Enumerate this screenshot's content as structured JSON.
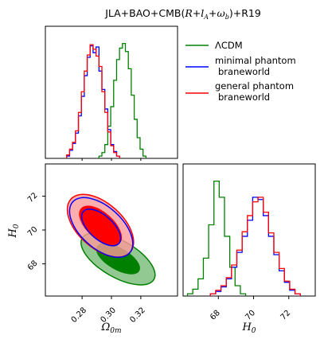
{
  "title": "JLA+BAO+CMB(R+l_A+ω_b)+R19",
  "legend": {
    "placement": "top-right",
    "entries": [
      {
        "label": "ΛCDM",
        "color": "#008000"
      },
      {
        "label": "minimal phantom\nbraneworld",
        "color": "#0000ff"
      },
      {
        "label": "general phantom\nbraneworld",
        "color": "#ff0000"
      }
    ]
  },
  "chart_data": [
    {
      "type": "histogram",
      "panel": "Omega_0m marginal",
      "xlim": [
        0.255,
        0.345
      ],
      "ylim": [
        0,
        1.15
      ],
      "grid": false,
      "series": [
        {
          "name": "ΛCDM",
          "color": "#008000",
          "x": [
            0.2925,
            0.2945,
            0.2965,
            0.2985,
            0.3005,
            0.3025,
            0.3045,
            0.3065,
            0.3085,
            0.3105,
            0.3125,
            0.3145,
            0.3165,
            0.3185,
            0.3205,
            0.3225
          ],
          "values": [
            0.02,
            0.05,
            0.12,
            0.28,
            0.45,
            0.68,
            0.86,
            0.96,
            1.0,
            0.93,
            0.78,
            0.55,
            0.34,
            0.18,
            0.08,
            0.02
          ]
        },
        {
          "name": "minimal phantom braneworld",
          "color": "#0000ff",
          "x": [
            0.2705,
            0.2725,
            0.2745,
            0.2765,
            0.2785,
            0.2805,
            0.2825,
            0.2845,
            0.2865,
            0.2885,
            0.2905,
            0.2925,
            0.2945,
            0.2965,
            0.2985,
            0.3005,
            0.3025,
            0.3045
          ],
          "values": [
            0.02,
            0.07,
            0.13,
            0.22,
            0.37,
            0.54,
            0.72,
            0.88,
            0.98,
            0.92,
            0.97,
            0.76,
            0.6,
            0.43,
            0.25,
            0.12,
            0.06,
            0.02
          ]
        },
        {
          "name": "general phantom braneworld",
          "color": "#ff0000",
          "x": [
            0.2705,
            0.2725,
            0.2745,
            0.2765,
            0.2785,
            0.2805,
            0.2825,
            0.2845,
            0.2865,
            0.2885,
            0.2905,
            0.2925,
            0.2945,
            0.2965,
            0.2985,
            0.3005,
            0.3025,
            0.3045
          ],
          "values": [
            0.03,
            0.08,
            0.14,
            0.24,
            0.4,
            0.58,
            0.76,
            0.9,
            0.99,
            0.95,
            0.89,
            0.8,
            0.58,
            0.4,
            0.23,
            0.11,
            0.05,
            0.02
          ]
        }
      ]
    },
    {
      "type": "contour",
      "panel": "H0 vs Omega_0m",
      "xlabel": "Ω_0m",
      "ylabel": "H_0",
      "xlim": [
        0.255,
        0.345
      ],
      "ylim": [
        66.1,
        73.9
      ],
      "xticks": [
        "0.28",
        "0.30",
        "0.32"
      ],
      "yticks": [
        "68",
        "70",
        "72"
      ],
      "grid": false,
      "series": [
        {
          "name": "ΛCDM",
          "color": "#008000",
          "center": [
            0.3045,
            68.3
          ],
          "levels": [
            "68%",
            "95%"
          ]
        },
        {
          "name": "minimal phantom braneworld",
          "color": "#0000ff",
          "center": [
            0.293,
            70.15
          ],
          "levels": [
            "68%",
            "95%"
          ]
        },
        {
          "name": "general phantom braneworld",
          "color": "#ff0000",
          "center": [
            0.2925,
            70.25
          ],
          "levels": [
            "68%",
            "95%"
          ]
        }
      ]
    },
    {
      "type": "histogram",
      "panel": "H0 marginal",
      "xlabel": "H_0",
      "xlim": [
        66.0,
        73.5
      ],
      "ylim": [
        0,
        1.15
      ],
      "xticks": [
        "68",
        "70",
        "72"
      ],
      "grid": false,
      "series": [
        {
          "name": "ΛCDM",
          "color": "#008000",
          "x": [
            66.4,
            66.7,
            67.0,
            67.3,
            67.6,
            67.9,
            68.2,
            68.5,
            68.8,
            69.1,
            69.4
          ],
          "values": [
            0.02,
            0.06,
            0.15,
            0.33,
            0.62,
            1.0,
            0.86,
            0.52,
            0.25,
            0.09,
            0.02
          ]
        },
        {
          "name": "minimal phantom braneworld",
          "color": "#0000ff",
          "x": [
            67.7,
            68.0,
            68.3,
            68.6,
            68.9,
            69.2,
            69.5,
            69.8,
            70.1,
            70.4,
            70.7,
            71.0,
            71.3,
            71.6,
            71.9,
            72.2,
            72.5
          ],
          "values": [
            0.02,
            0.04,
            0.08,
            0.15,
            0.25,
            0.38,
            0.52,
            0.66,
            0.86,
            0.84,
            0.7,
            0.52,
            0.36,
            0.22,
            0.12,
            0.05,
            0.02
          ]
        },
        {
          "name": "general phantom braneworld",
          "color": "#ff0000",
          "x": [
            67.7,
            68.0,
            68.3,
            68.6,
            68.9,
            69.2,
            69.5,
            69.8,
            70.1,
            70.4,
            70.7,
            71.0,
            71.3,
            71.6,
            71.9,
            72.2,
            72.5
          ],
          "values": [
            0.02,
            0.05,
            0.09,
            0.16,
            0.27,
            0.4,
            0.56,
            0.7,
            0.82,
            0.86,
            0.73,
            0.55,
            0.38,
            0.24,
            0.13,
            0.06,
            0.02
          ]
        }
      ]
    }
  ]
}
